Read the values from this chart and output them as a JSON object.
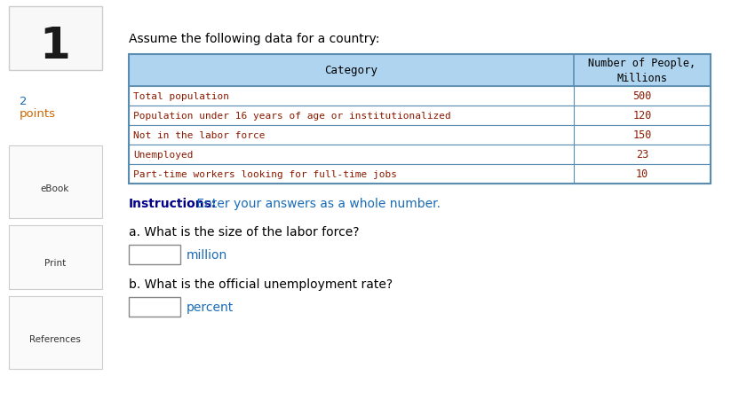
{
  "title_text": "Assume the following data for a country:",
  "question_number": "1",
  "table_header": [
    "Category",
    "Number of People,\nMillions"
  ],
  "table_rows": [
    [
      "Total population",
      "500"
    ],
    [
      "Population under 16 years of age or institutionalized",
      "120"
    ],
    [
      "Not in the labor force",
      "150"
    ],
    [
      "Unemployed",
      "23"
    ],
    [
      "Part-time workers looking for full-time jobs",
      "10"
    ]
  ],
  "instructions_bold": "Instructions:",
  "instructions_text": " Enter your answers as a whole number.",
  "question_a": "a. What is the size of the labor force?",
  "question_b": "b. What is the official unemployment rate?",
  "answer_a_suffix": "million",
  "answer_b_suffix": "percent",
  "header_bg": "#aed4f0",
  "header_border": "#5a8db0",
  "row_bg_white": "#ffffff",
  "row_border": "#5a8db0",
  "table_text_color": "#8b1a00",
  "header_text_color": "#000000",
  "instructions_bold_color": "#00008b",
  "instructions_text_color": "#1a6bb5",
  "question_text_color": "#000000",
  "answer_suffix_color": "#1a6bb5",
  "bg_color": "#ffffff",
  "points_number_color": "#1a6bb5",
  "points_label_color": "#cc6600"
}
